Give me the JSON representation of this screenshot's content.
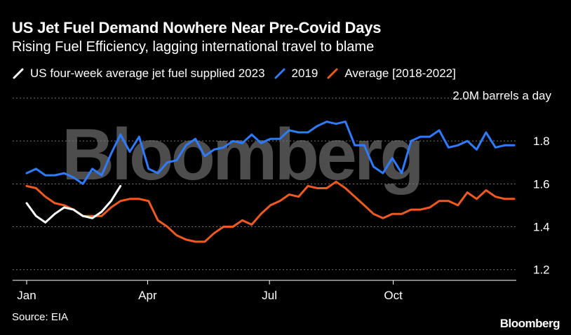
{
  "header": {
    "title": "US Jet Fuel Demand Nowhere Near Pre-Covid Days",
    "subtitle": "Rising Fuel Efficiency, lagging international travel to blame"
  },
  "footer": {
    "source": "Source: EIA",
    "brand": "Bloomberg"
  },
  "watermark": "Bloomberg",
  "colors": {
    "background": "#000000",
    "series_2023": "#ffffff",
    "series_2019": "#2e7bff",
    "series_avg": "#f05a22",
    "grid": "#777777",
    "text": "#ffffff"
  },
  "chart_data": {
    "type": "line",
    "unit_label": "2.0M barrels a day",
    "ylim": [
      1.15,
      2.0
    ],
    "xlim": [
      0,
      52
    ],
    "yticks": [
      1.2,
      1.4,
      1.6,
      1.8
    ],
    "ytick_labels": [
      "1.2",
      "1.4",
      "1.6",
      "1.8"
    ],
    "xticks": [
      {
        "week": 0,
        "label": "Jan"
      },
      {
        "week": 12.9,
        "label": "Apr"
      },
      {
        "week": 25.9,
        "label": "Jul"
      },
      {
        "week": 39.1,
        "label": "Oct"
      }
    ],
    "grid": true,
    "legend_position": "top-left",
    "series": [
      {
        "name": "US four-week average jet fuel supplied 2023",
        "color": "#ffffff",
        "x": [
          0,
          1,
          2,
          3,
          4,
          5,
          6,
          7,
          8,
          9,
          10
        ],
        "y": [
          1.51,
          1.45,
          1.42,
          1.46,
          1.49,
          1.48,
          1.45,
          1.44,
          1.47,
          1.52,
          1.59
        ]
      },
      {
        "name": "2019",
        "color": "#2e7bff",
        "x": [
          0,
          1,
          2,
          3,
          4,
          5,
          6,
          7,
          8,
          9,
          10,
          11,
          12,
          13,
          14,
          15,
          16,
          17,
          18,
          19,
          20,
          21,
          22,
          23,
          24,
          25,
          26,
          27,
          28,
          29,
          30,
          31,
          32,
          33,
          34,
          35,
          36,
          37,
          38,
          39,
          40,
          41,
          42,
          43,
          44,
          45,
          46,
          47,
          48,
          49,
          50,
          51,
          52
        ],
        "y": [
          1.65,
          1.67,
          1.64,
          1.64,
          1.65,
          1.63,
          1.6,
          1.67,
          1.64,
          1.74,
          1.83,
          1.75,
          1.82,
          1.67,
          1.65,
          1.7,
          1.71,
          1.78,
          1.81,
          1.73,
          1.76,
          1.77,
          1.8,
          1.79,
          1.83,
          1.79,
          1.81,
          1.81,
          1.85,
          1.84,
          1.84,
          1.87,
          1.89,
          1.88,
          1.89,
          1.78,
          1.78,
          1.68,
          1.65,
          1.72,
          1.65,
          1.8,
          1.82,
          1.82,
          1.85,
          1.77,
          1.78,
          1.8,
          1.76,
          1.84,
          1.77,
          1.78,
          1.78
        ]
      },
      {
        "name": "Average [2018-2022]",
        "color": "#f05a22",
        "x": [
          0,
          1,
          2,
          3,
          4,
          5,
          6,
          7,
          8,
          9,
          10,
          11,
          12,
          13,
          14,
          15,
          16,
          17,
          18,
          19,
          20,
          21,
          22,
          23,
          24,
          25,
          26,
          27,
          28,
          29,
          30,
          31,
          32,
          33,
          34,
          35,
          36,
          37,
          38,
          39,
          40,
          41,
          42,
          43,
          44,
          45,
          46,
          47,
          48,
          49,
          50,
          51,
          52
        ],
        "y": [
          1.59,
          1.58,
          1.54,
          1.51,
          1.5,
          1.48,
          1.45,
          1.45,
          1.45,
          1.49,
          1.52,
          1.53,
          1.53,
          1.52,
          1.43,
          1.4,
          1.36,
          1.34,
          1.33,
          1.33,
          1.37,
          1.4,
          1.4,
          1.43,
          1.41,
          1.46,
          1.5,
          1.52,
          1.55,
          1.54,
          1.59,
          1.58,
          1.58,
          1.61,
          1.58,
          1.54,
          1.5,
          1.46,
          1.44,
          1.46,
          1.46,
          1.48,
          1.48,
          1.49,
          1.52,
          1.52,
          1.5,
          1.56,
          1.53,
          1.57,
          1.54,
          1.53,
          1.53
        ]
      }
    ]
  }
}
